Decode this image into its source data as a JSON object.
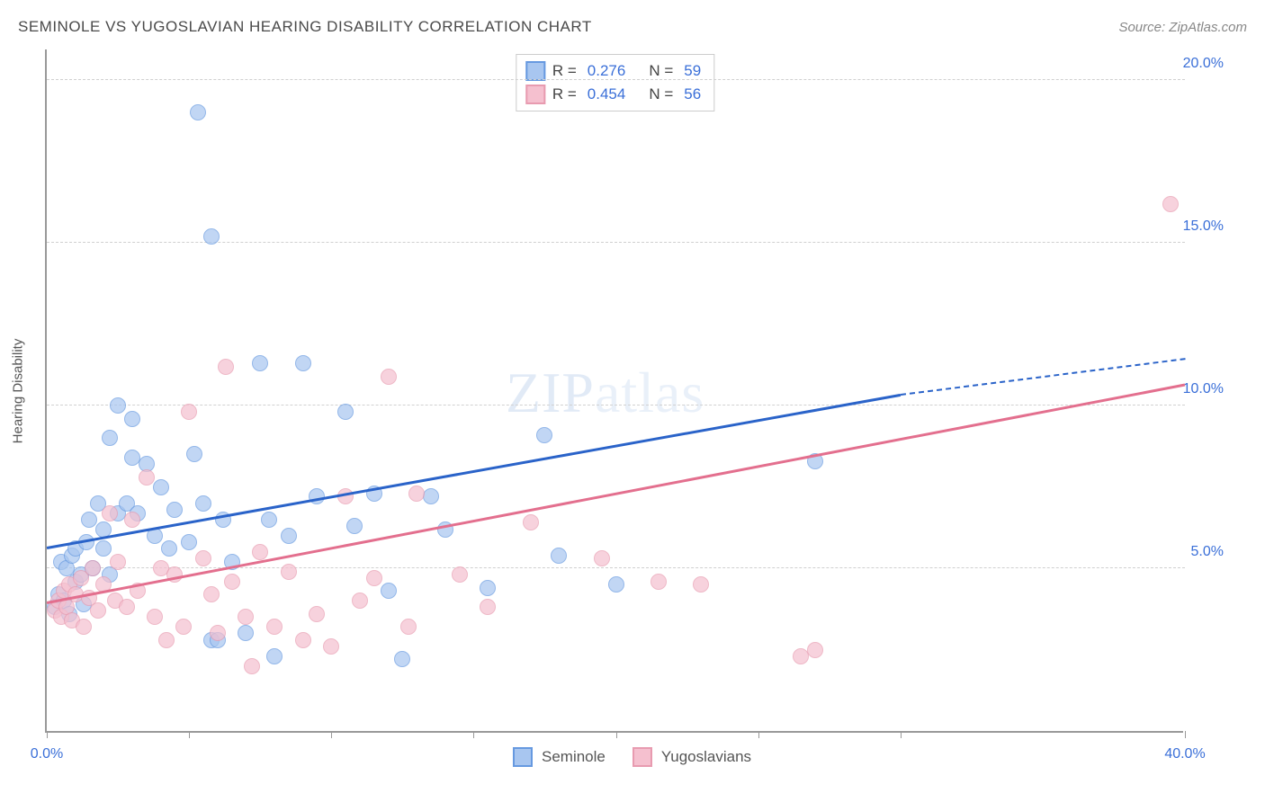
{
  "header": {
    "title": "SEMINOLE VS YUGOSLAVIAN HEARING DISABILITY CORRELATION CHART",
    "source": "Source: ZipAtlas.com"
  },
  "watermark": {
    "text_bold": "ZIP",
    "text_light": "atlas"
  },
  "chart": {
    "type": "scatter",
    "y_axis_label": "Hearing Disability",
    "background_color": "#ffffff",
    "grid_color": "#d0d0d0",
    "axis_color": "#999999",
    "x_range": [
      0,
      40
    ],
    "y_range": [
      0,
      21
    ],
    "x_ticks": [
      0,
      5,
      10,
      15,
      20,
      25,
      30,
      40
    ],
    "x_tick_labels": {
      "0": "0.0%",
      "40": "40.0%"
    },
    "y_gridlines": [
      5,
      10,
      15,
      20
    ],
    "y_tick_labels": {
      "5": "5.0%",
      "10": "10.0%",
      "15": "15.0%",
      "20": "20.0%"
    },
    "marker_radius": 9,
    "marker_fill_opacity": 0.35,
    "series": [
      {
        "name": "Seminole",
        "color_stroke": "#6699e0",
        "color_fill": "#a8c6f0",
        "trend_color": "#2a63c9",
        "trend": {
          "x1": 0,
          "y1": 5.6,
          "x2": 30,
          "y2": 10.3,
          "x2_dash": 40,
          "y2_dash": 11.4
        },
        "R": "0.276",
        "N": "59",
        "points": [
          [
            0.3,
            3.8
          ],
          [
            0.4,
            4.2
          ],
          [
            0.5,
            5.2
          ],
          [
            0.6,
            4.0
          ],
          [
            0.7,
            5.0
          ],
          [
            0.8,
            3.6
          ],
          [
            0.9,
            5.4
          ],
          [
            1.0,
            4.6
          ],
          [
            1.0,
            5.6
          ],
          [
            1.2,
            4.8
          ],
          [
            1.3,
            3.9
          ],
          [
            1.4,
            5.8
          ],
          [
            1.5,
            6.5
          ],
          [
            1.6,
            5.0
          ],
          [
            1.8,
            7.0
          ],
          [
            2.0,
            6.2
          ],
          [
            2.0,
            5.6
          ],
          [
            2.2,
            9.0
          ],
          [
            2.2,
            4.8
          ],
          [
            2.5,
            10.0
          ],
          [
            2.5,
            6.7
          ],
          [
            2.8,
            7.0
          ],
          [
            3.0,
            9.6
          ],
          [
            3.0,
            8.4
          ],
          [
            3.2,
            6.7
          ],
          [
            3.5,
            8.2
          ],
          [
            3.8,
            6.0
          ],
          [
            4.0,
            7.5
          ],
          [
            4.3,
            5.6
          ],
          [
            4.5,
            6.8
          ],
          [
            5.0,
            5.8
          ],
          [
            5.2,
            8.5
          ],
          [
            5.3,
            19.0
          ],
          [
            5.5,
            7.0
          ],
          [
            5.8,
            2.8
          ],
          [
            5.8,
            15.2
          ],
          [
            6.0,
            2.8
          ],
          [
            6.2,
            6.5
          ],
          [
            6.5,
            5.2
          ],
          [
            7.0,
            3.0
          ],
          [
            7.5,
            11.3
          ],
          [
            7.8,
            6.5
          ],
          [
            8.0,
            2.3
          ],
          [
            8.5,
            6.0
          ],
          [
            9.0,
            11.3
          ],
          [
            9.5,
            7.2
          ],
          [
            10.5,
            9.8
          ],
          [
            10.8,
            6.3
          ],
          [
            11.5,
            7.3
          ],
          [
            12.0,
            4.3
          ],
          [
            12.5,
            2.2
          ],
          [
            13.5,
            7.2
          ],
          [
            14.0,
            6.2
          ],
          [
            15.5,
            4.4
          ],
          [
            17.5,
            9.1
          ],
          [
            18.0,
            5.4
          ],
          [
            20.0,
            4.5
          ],
          [
            27.0,
            8.3
          ]
        ]
      },
      {
        "name": "Yugoslavians",
        "color_stroke": "#e89bb0",
        "color_fill": "#f5c0cf",
        "trend_color": "#e36f8e",
        "trend": {
          "x1": 0,
          "y1": 3.9,
          "x2": 40,
          "y2": 10.6
        },
        "R": "0.454",
        "N": "56",
        "points": [
          [
            0.3,
            3.7
          ],
          [
            0.4,
            4.0
          ],
          [
            0.5,
            3.5
          ],
          [
            0.6,
            4.3
          ],
          [
            0.7,
            3.8
          ],
          [
            0.8,
            4.5
          ],
          [
            0.9,
            3.4
          ],
          [
            1.0,
            4.2
          ],
          [
            1.2,
            4.7
          ],
          [
            1.3,
            3.2
          ],
          [
            1.5,
            4.1
          ],
          [
            1.6,
            5.0
          ],
          [
            1.8,
            3.7
          ],
          [
            2.0,
            4.5
          ],
          [
            2.2,
            6.7
          ],
          [
            2.4,
            4.0
          ],
          [
            2.5,
            5.2
          ],
          [
            2.8,
            3.8
          ],
          [
            3.0,
            6.5
          ],
          [
            3.2,
            4.3
          ],
          [
            3.5,
            7.8
          ],
          [
            3.8,
            3.5
          ],
          [
            4.0,
            5.0
          ],
          [
            4.2,
            2.8
          ],
          [
            4.5,
            4.8
          ],
          [
            4.8,
            3.2
          ],
          [
            5.0,
            9.8
          ],
          [
            5.5,
            5.3
          ],
          [
            5.8,
            4.2
          ],
          [
            6.0,
            3.0
          ],
          [
            6.3,
            11.2
          ],
          [
            6.5,
            4.6
          ],
          [
            7.0,
            3.5
          ],
          [
            7.2,
            2.0
          ],
          [
            7.5,
            5.5
          ],
          [
            8.0,
            3.2
          ],
          [
            8.5,
            4.9
          ],
          [
            9.0,
            2.8
          ],
          [
            9.5,
            3.6
          ],
          [
            10.0,
            2.6
          ],
          [
            10.5,
            7.2
          ],
          [
            11.0,
            4.0
          ],
          [
            11.5,
            4.7
          ],
          [
            12.0,
            10.9
          ],
          [
            12.7,
            3.2
          ],
          [
            13.0,
            7.3
          ],
          [
            14.5,
            4.8
          ],
          [
            15.5,
            3.8
          ],
          [
            17.0,
            6.4
          ],
          [
            19.5,
            5.3
          ],
          [
            21.5,
            4.6
          ],
          [
            23.0,
            4.5
          ],
          [
            26.5,
            2.3
          ],
          [
            27.0,
            2.5
          ],
          [
            39.5,
            16.2
          ]
        ]
      }
    ],
    "legend_bottom": [
      {
        "label": "Seminole",
        "swatch_fill": "#a8c6f0",
        "swatch_stroke": "#6699e0"
      },
      {
        "label": "Yugoslavians",
        "swatch_fill": "#f5c0cf",
        "swatch_stroke": "#e89bb0"
      }
    ]
  }
}
